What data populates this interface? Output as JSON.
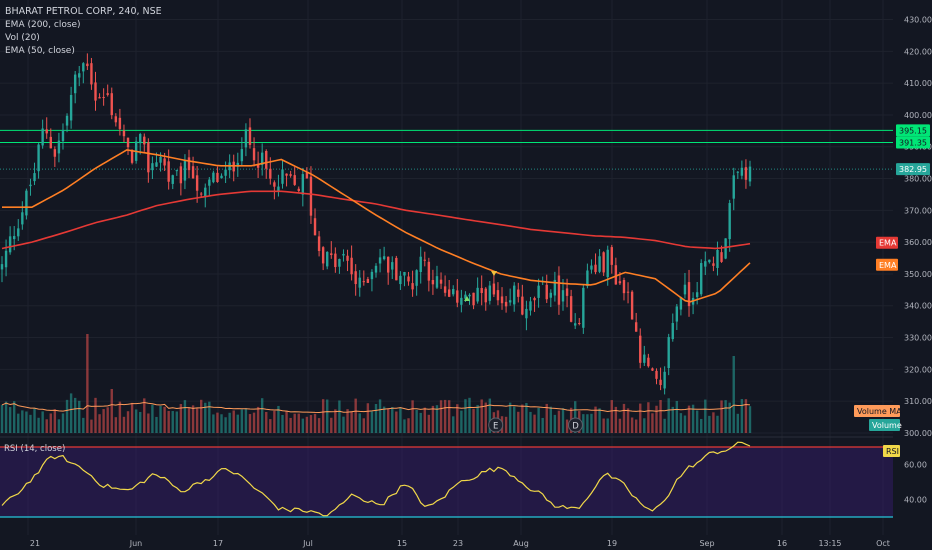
{
  "header": {
    "symbol_line": "BHARAT PETROL CORP, 240, NSE",
    "indicators": [
      "EMA (200, close)",
      "Vol (20)",
      "EMA (50, close)"
    ]
  },
  "rsi_header": "RSI (14, close)",
  "price_axis": {
    "ticks": [
      430,
      420,
      410,
      400,
      390,
      380,
      370,
      360,
      350,
      340,
      330,
      320,
      310,
      300
    ],
    "labels": [
      "430.00",
      "420.00",
      "410.00",
      "400.00",
      "390.00",
      "380.00",
      "370.00",
      "360.00",
      "350.00",
      "340.00",
      "330.00",
      "320.00",
      "310.00",
      "300.00"
    ]
  },
  "rsi_axis": {
    "ticks": [
      60,
      40
    ],
    "labels": [
      "60.00",
      "40.00"
    ],
    "upper": 70,
    "lower": 30
  },
  "time_axis": [
    "21",
    "Jun",
    "17",
    "Jul",
    "15",
    "23",
    "Aug",
    "19",
    "Sep",
    "16",
    "13:15",
    "Oct"
  ],
  "badges": {
    "resistance_1": "395.15",
    "resistance_2": "391.35",
    "last_price": "382.95",
    "ema200": "EMA",
    "ema50": "EMA",
    "volume_ma": "Volume MA",
    "volume": "Volume",
    "rsi": "RSI"
  },
  "events": [
    "E",
    "D"
  ],
  "colors": {
    "background": "#131722",
    "up": "#26a69a",
    "down": "#ef5350",
    "ema200": "#e53935",
    "ema50": "#ff7f24",
    "volume_ma": "#ff9b5a",
    "rsi_line": "#f1d849",
    "rsi_band": "#311b63",
    "rsi_upper": "#e53935",
    "rsi_lower": "#26c6da",
    "resistance": "#00e676",
    "last_price_line": "#26a69a"
  },
  "chart_data": {
    "type": "candlestick",
    "title": "BHARAT PETROL CORP, 240, NSE",
    "ylim": [
      297,
      433
    ],
    "resistance_levels": [
      395.15,
      391.35
    ],
    "last_price": 382.95,
    "close_path": [
      [
        0,
        352
      ],
      [
        4,
        362
      ],
      [
        9,
        372
      ],
      [
        13,
        382
      ],
      [
        17,
        397
      ],
      [
        21,
        388
      ],
      [
        25,
        396
      ],
      [
        29,
        410
      ],
      [
        34,
        418
      ],
      [
        38,
        404
      ],
      [
        42,
        406
      ],
      [
        47,
        396
      ],
      [
        51,
        386
      ],
      [
        55,
        392
      ],
      [
        59,
        383
      ],
      [
        63,
        388
      ],
      [
        68,
        378
      ],
      [
        72,
        381
      ],
      [
        76,
        385
      ],
      [
        80,
        372
      ],
      [
        84,
        380
      ],
      [
        89,
        380
      ],
      [
        93,
        385
      ],
      [
        97,
        393
      ],
      [
        101,
        389
      ],
      [
        105,
        384
      ],
      [
        109,
        376
      ],
      [
        113,
        380
      ],
      [
        118,
        377
      ],
      [
        122,
        380
      ],
      [
        126,
        360
      ],
      [
        130,
        355
      ],
      [
        134,
        353
      ],
      [
        138,
        355
      ],
      [
        143,
        345
      ],
      [
        147,
        350
      ],
      [
        151,
        356
      ],
      [
        155,
        352
      ],
      [
        159,
        351
      ],
      [
        164,
        346
      ],
      [
        168,
        356
      ],
      [
        172,
        350
      ],
      [
        176,
        345
      ],
      [
        180,
        341
      ],
      [
        185,
        345
      ],
      [
        189,
        340
      ],
      [
        193,
        345
      ],
      [
        197,
        343
      ],
      [
        202,
        336
      ],
      [
        206,
        346
      ],
      [
        210,
        336
      ],
      [
        214,
        343
      ],
      [
        218,
        345
      ],
      [
        222,
        345
      ],
      [
        227,
        340
      ],
      [
        231,
        335
      ],
      [
        235,
        352
      ],
      [
        239,
        352
      ],
      [
        243,
        355
      ],
      [
        247,
        348
      ],
      [
        252,
        342
      ],
      [
        256,
        325
      ],
      [
        260,
        318
      ],
      [
        264,
        312
      ],
      [
        268,
        332
      ],
      [
        272,
        345
      ],
      [
        276,
        342
      ],
      [
        280,
        350
      ],
      [
        284,
        354
      ],
      [
        289,
        357
      ],
      [
        293,
        377
      ],
      [
        297,
        383
      ],
      [
        300,
        381
      ]
    ],
    "ema200_path": [
      [
        0,
        358
      ],
      [
        12,
        360
      ],
      [
        25,
        363
      ],
      [
        37,
        366
      ],
      [
        50,
        368.5
      ],
      [
        62,
        371.5
      ],
      [
        75,
        373.5
      ],
      [
        87,
        375
      ],
      [
        100,
        376
      ],
      [
        112,
        376
      ],
      [
        125,
        375
      ],
      [
        137,
        373.5
      ],
      [
        150,
        372
      ],
      [
        162,
        370
      ],
      [
        175,
        368.5
      ],
      [
        187,
        367
      ],
      [
        200,
        365.5
      ],
      [
        212,
        364
      ],
      [
        225,
        363
      ],
      [
        237,
        362
      ],
      [
        250,
        361.5
      ],
      [
        262,
        360.5
      ],
      [
        275,
        358.5
      ],
      [
        287,
        358
      ],
      [
        300,
        359.5
      ]
    ],
    "ema50_path": [
      [
        0,
        371
      ],
      [
        12,
        371
      ],
      [
        25,
        376.5
      ],
      [
        37,
        383
      ],
      [
        50,
        389
      ],
      [
        62,
        387.5
      ],
      [
        75,
        385.5
      ],
      [
        87,
        384
      ],
      [
        100,
        384
      ],
      [
        112,
        386
      ],
      [
        125,
        381
      ],
      [
        137,
        375
      ],
      [
        150,
        368.5
      ],
      [
        162,
        363
      ],
      [
        175,
        358
      ],
      [
        187,
        354
      ],
      [
        200,
        350
      ],
      [
        212,
        348
      ],
      [
        225,
        347
      ],
      [
        237,
        346.5
      ],
      [
        250,
        350.5
      ],
      [
        262,
        348.5
      ],
      [
        275,
        341
      ],
      [
        287,
        344
      ],
      [
        300,
        353.5
      ]
    ],
    "rsi_path": [
      [
        0,
        36
      ],
      [
        10,
        52
      ],
      [
        20,
        66
      ],
      [
        30,
        58
      ],
      [
        40,
        48
      ],
      [
        50,
        44
      ],
      [
        60,
        56
      ],
      [
        70,
        44
      ],
      [
        80,
        52
      ],
      [
        90,
        58
      ],
      [
        100,
        46
      ],
      [
        110,
        34
      ],
      [
        120,
        34
      ],
      [
        130,
        30
      ],
      [
        140,
        44
      ],
      [
        150,
        36
      ],
      [
        160,
        50
      ],
      [
        170,
        33
      ],
      [
        180,
        48
      ],
      [
        190,
        56
      ],
      [
        200,
        58
      ],
      [
        210,
        48
      ],
      [
        220,
        36
      ],
      [
        230,
        34
      ],
      [
        240,
        57
      ],
      [
        250,
        44
      ],
      [
        260,
        30
      ],
      [
        270,
        54
      ],
      [
        280,
        64
      ],
      [
        290,
        70
      ],
      [
        296,
        72
      ],
      [
        300,
        71
      ]
    ],
    "volume_spikes": [
      [
        34,
        4.5
      ],
      [
        293,
        3.5
      ],
      [
        27,
        1.8
      ],
      [
        44,
        2.0
      ],
      [
        187,
        1.6
      ],
      [
        264,
        1.5
      ]
    ],
    "events": [
      {
        "label": "E",
        "x": 198
      },
      {
        "label": "D",
        "x": 230
      }
    ]
  }
}
